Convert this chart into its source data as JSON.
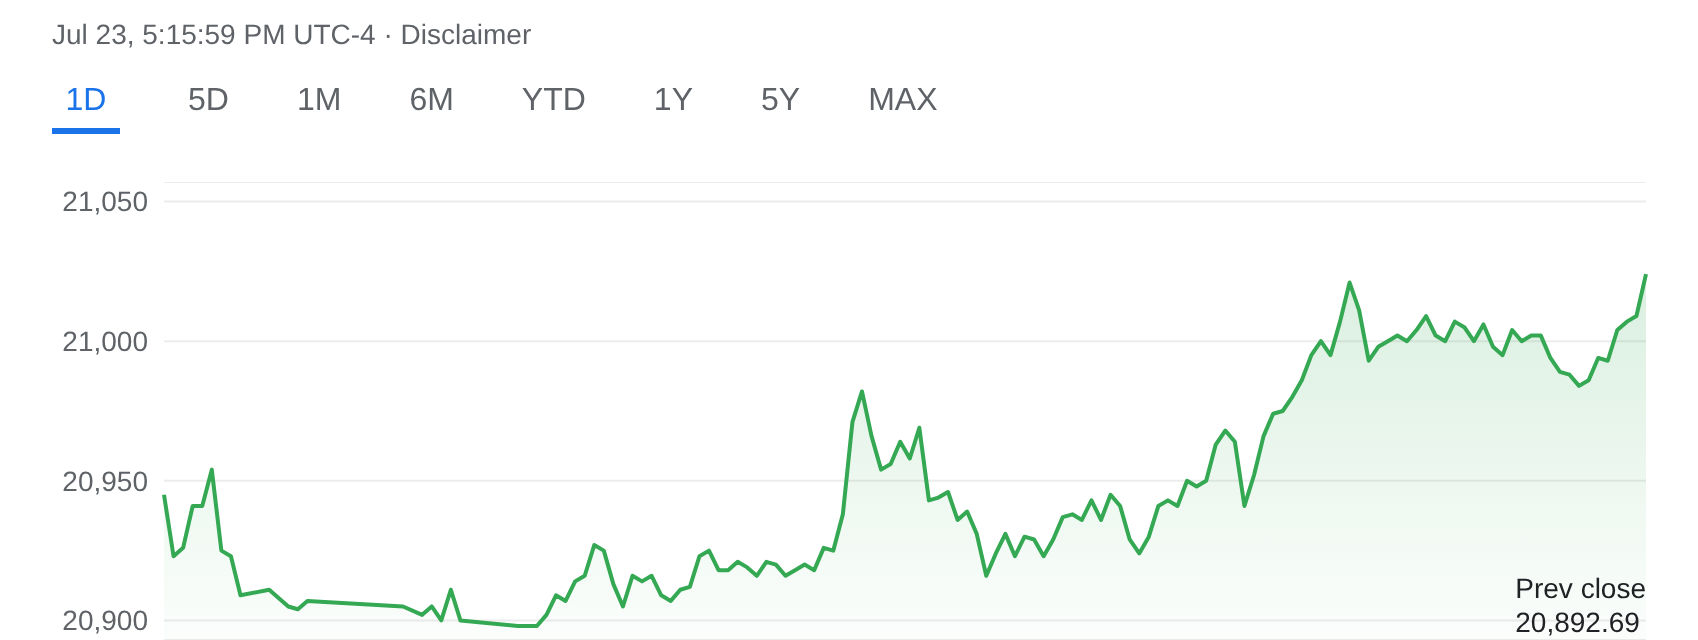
{
  "chart_data": {
    "type": "area",
    "subtitle": "Jul 23, 5:15:59 PM UTC-4 · Disclaimer",
    "annotations": [
      "1D",
      "5D",
      "1M",
      "6M",
      "YTD",
      "1Y",
      "5Y",
      "MAX",
      "Prev close",
      "20,892.69"
    ],
    "categories": [
      null,
      null,
      null,
      null,
      null,
      null,
      null,
      null,
      null,
      null,
      null,
      null,
      null,
      null,
      null,
      null,
      null,
      null,
      null,
      null,
      null,
      null,
      null,
      null,
      null,
      null,
      null,
      null,
      null,
      null,
      null,
      null,
      null,
      null,
      null,
      null,
      null,
      null,
      null,
      null,
      null,
      null,
      null,
      null,
      null,
      null,
      null,
      null,
      null,
      null,
      null,
      null,
      null,
      null,
      null,
      null,
      null,
      null,
      null,
      null,
      null,
      null,
      null,
      null,
      null,
      null,
      null,
      null,
      null,
      null,
      null,
      null,
      null,
      null,
      null,
      null,
      null,
      null,
      null,
      null,
      null,
      null,
      null,
      null,
      null,
      null,
      null,
      null,
      null,
      null,
      null,
      null,
      null,
      null,
      null,
      null,
      null,
      null,
      null,
      null,
      null,
      null,
      null,
      null,
      null,
      null,
      null,
      null,
      null,
      null,
      null,
      null,
      null,
      null,
      null,
      null,
      null,
      null,
      null,
      null,
      null,
      null,
      null,
      null,
      null,
      null,
      null,
      null,
      null,
      null,
      null,
      null,
      null,
      null,
      null,
      null,
      null,
      null,
      null,
      null,
      null,
      null,
      null,
      null,
      null,
      null,
      null,
      null,
      null,
      null,
      null,
      null,
      null,
      null,
      null,
      null
    ],
    "series": [
      {
        "color": "#34a853",
        "values": [
          20945,
          20923,
          20926,
          20941,
          20941,
          20954,
          20925,
          20923,
          20909,
          null,
          null,
          20911,
          null,
          20905,
          20904,
          20907,
          null,
          null,
          null,
          null,
          null,
          null,
          null,
          null,
          null,
          20905,
          null,
          20902,
          20905,
          20900,
          20911,
          20900,
          null,
          null,
          null,
          null,
          null,
          20898,
          null,
          20898,
          20902,
          20909,
          20907,
          20914,
          20916,
          20927,
          20925,
          20913,
          20905,
          20916,
          20914,
          20916,
          20909,
          20907,
          20911,
          20912,
          20923,
          20925,
          20918,
          20918,
          20921,
          20919,
          20916,
          20921,
          20920,
          20916,
          20918,
          20920,
          20918,
          20926,
          20925,
          20938,
          20971,
          20982,
          20966,
          20954,
          20956,
          20964,
          20958,
          20969,
          20943,
          20944,
          20946,
          20936,
          20939,
          20931,
          20916,
          20924,
          20931,
          20923,
          20930,
          20929,
          20923,
          20929,
          20937,
          20938,
          20936,
          20943,
          20936,
          20945,
          20941,
          20929,
          20924,
          20930,
          20941,
          20943,
          20941,
          20950,
          20948,
          20950,
          20963,
          20968,
          20964,
          20941,
          20952,
          20966,
          20974,
          20975,
          20980,
          20986,
          20995,
          21000,
          20995,
          21007,
          21021,
          21011,
          20993,
          20998,
          21000,
          21002,
          21000,
          21004,
          21009,
          21002,
          21000,
          21007,
          21005,
          21000,
          21006,
          20998,
          20995,
          21004,
          21000,
          21002,
          21002,
          20994,
          20989,
          20988,
          20984,
          20986,
          20994,
          20993,
          21004,
          21007,
          21009,
          21024
        ]
      }
    ],
    "ylim": [
      20893,
      21057
    ],
    "yticks": [
      {
        "value": 20900,
        "label": "20,900"
      },
      {
        "value": 20950,
        "label": "20,950"
      },
      {
        "value": 21000,
        "label": "21,000"
      },
      {
        "value": 21050,
        "label": "21,050"
      }
    ],
    "grid": "y",
    "tick_labels": "y"
  }
}
